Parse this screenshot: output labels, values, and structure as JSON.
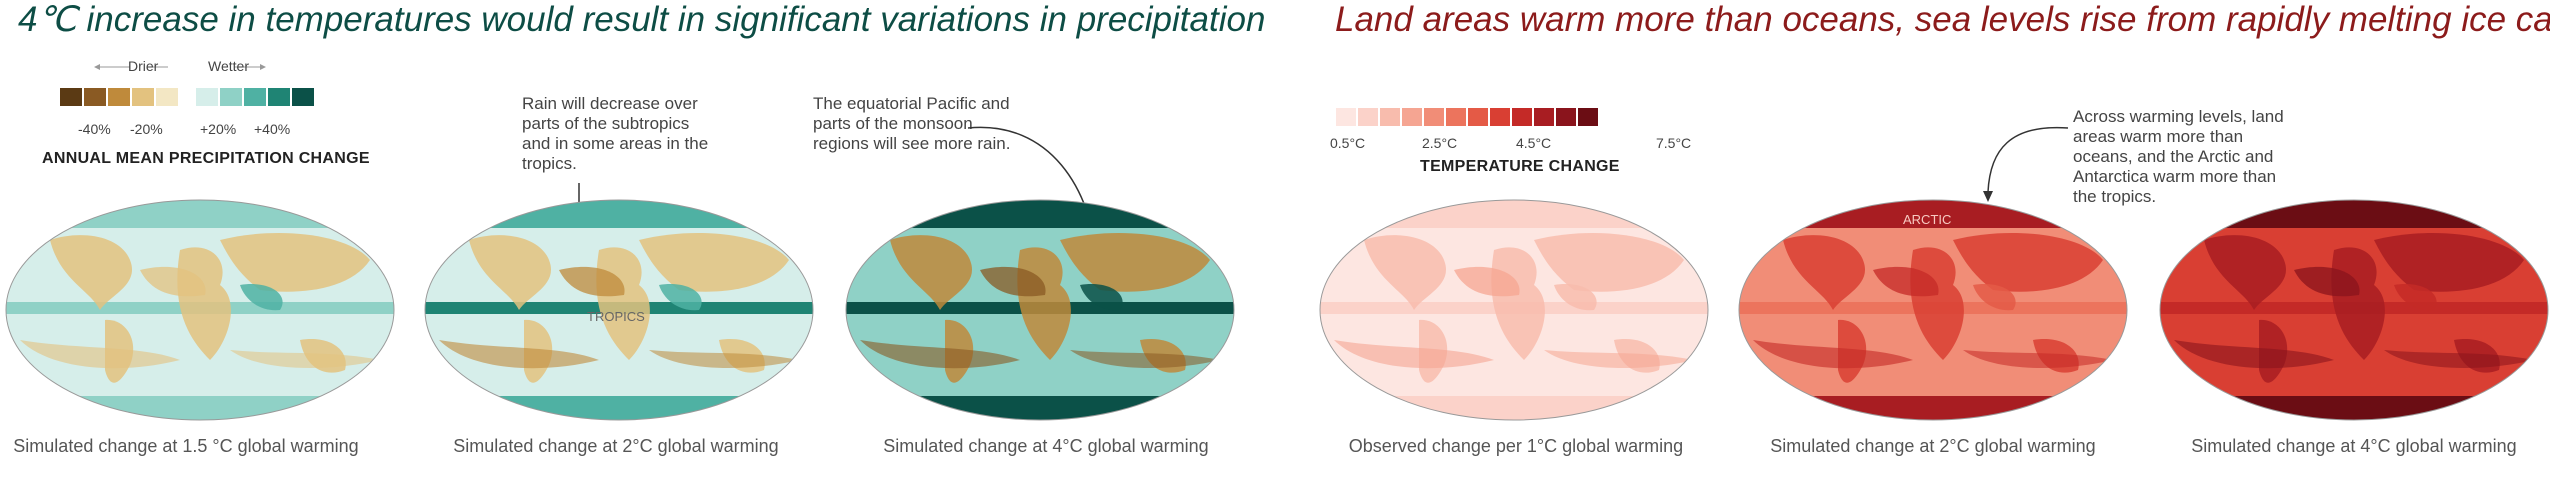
{
  "left": {
    "title": "4℃ increase in temperatures would result in significant variations in precipitation",
    "legend": {
      "drier": "Drier",
      "wetter": "Wetter",
      "ticks": [
        "-40%",
        "-20%",
        "+20%",
        "+40%"
      ],
      "title": "ANNUAL MEAN PRECIPITATION CHANGE",
      "colors": [
        "#5b3a14",
        "#8a5a23",
        "#bf8a3b",
        "#e3c27f",
        "#f3e7c4",
        "#d6eeea",
        "#8fd1c6",
        "#4fb1a3",
        "#1f8474",
        "#0b5148"
      ]
    },
    "annotations": [
      "Rain will decrease over parts of the subtropics and in some areas in the tropics.",
      "The equatorial Pacific and parts of the monsoon regions will see more rain."
    ],
    "map_label": "TROPICS",
    "captions": [
      "Simulated change at 1.5 °C global warming",
      "Simulated change at 2°C global warming",
      "Simulated change at 4°C global warming"
    ]
  },
  "right": {
    "title": "Land areas warm more than oceans, sea levels rise from rapidly melting ice caps",
    "legend": {
      "ticks": [
        "0.5°C",
        "2.5°C",
        "4.5°C",
        "7.5°C"
      ],
      "title": "TEMPERATURE CHANGE",
      "colors": [
        "#fde6e1",
        "#fbd2c9",
        "#f8bcad",
        "#f5a592",
        "#f18d77",
        "#ec745d",
        "#e45a46",
        "#d93f33",
        "#c42a27",
        "#a81d22",
        "#8a141c",
        "#6b0d14"
      ]
    },
    "annotations": [
      "Across warming levels, land areas warm more than oceans, and the Arctic and Antarctica warm more than the tropics."
    ],
    "map_label": "ARCTIC",
    "captions": [
      "Observed change per 1°C global warming",
      "Simulated change at 2°C global warming",
      "Simulated change at 4°C global warming"
    ]
  }
}
